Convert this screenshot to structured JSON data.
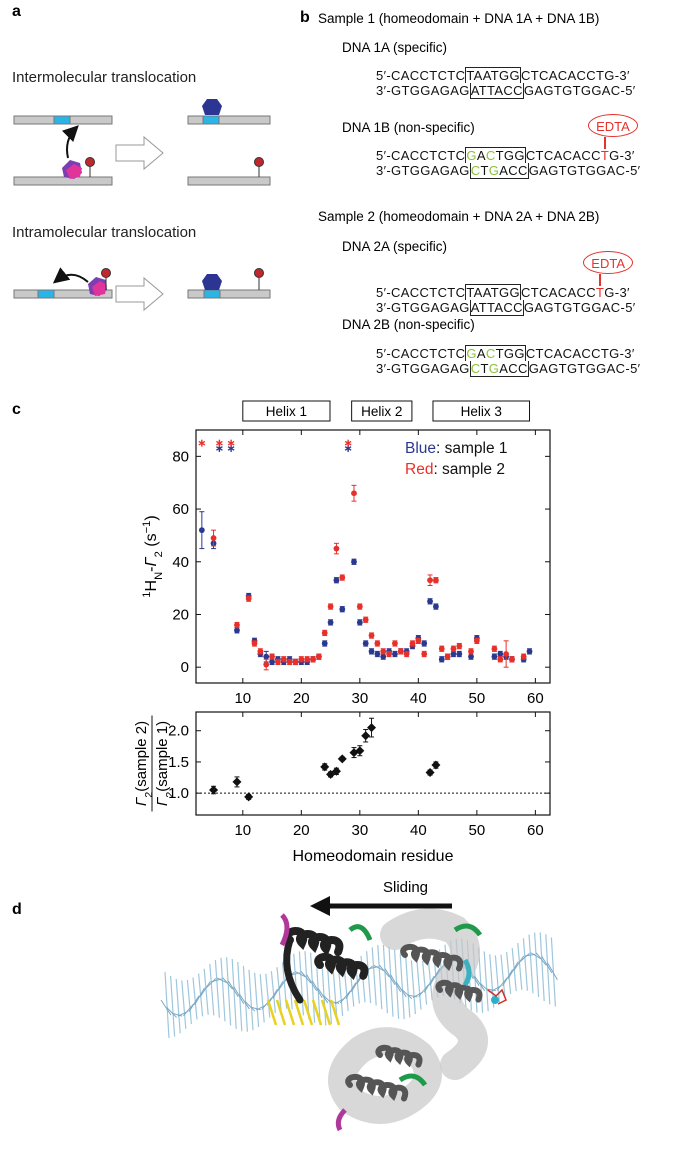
{
  "panel_labels": [
    "a",
    "b",
    "c",
    "d"
  ],
  "panel_a": {
    "titles": [
      "Intermolecular translocation",
      "Intramolecular translocation"
    ]
  },
  "panel_b": {
    "samples": [
      {
        "title": "Sample 1 (homeodomain + DNA 1A + DNA 1B)",
        "dnas": [
          {
            "label": "DNA 1A (specific)",
            "strands": [
              [
                {
                  "text": "5′-CACCTCTC",
                  "style": "plain"
                },
                {
                  "text": "TAATGG",
                  "style": "box"
                },
                {
                  "text": "CTCACACCTG-3′",
                  "style": "plain"
                }
              ],
              [
                {
                  "text": "3′-GTGGAGAG",
                  "style": "plain"
                },
                {
                  "text": "ATTACC",
                  "style": "box"
                },
                {
                  "text": "GAGTGTGGAC-5′",
                  "style": "plain"
                }
              ]
            ]
          },
          {
            "label": "DNA 1B (non-specific)",
            "tag": "EDTA",
            "strands": [
              [
                {
                  "text": "5′-CACCTCTC",
                  "style": "plain"
                },
                {
                  "text": "G",
                  "style": "box-green"
                },
                {
                  "text": "A",
                  "style": "box"
                },
                {
                  "text": "C",
                  "style": "box-green"
                },
                {
                  "text": "TGG",
                  "style": "box"
                },
                {
                  "text": "CTCACACC",
                  "style": "plain"
                },
                {
                  "text": "T",
                  "style": "red"
                },
                {
                  "text": "G-3′",
                  "style": "plain"
                }
              ],
              [
                {
                  "text": "3′-GTGGAGAG",
                  "style": "plain"
                },
                {
                  "text": "C",
                  "style": "box-green"
                },
                {
                  "text": "T",
                  "style": "box"
                },
                {
                  "text": "G",
                  "style": "box-green"
                },
                {
                  "text": "ACC",
                  "style": "box"
                },
                {
                  "text": "GAGTGTGGAC-5′",
                  "style": "plain"
                }
              ]
            ]
          }
        ]
      },
      {
        "title": "Sample 2 (homeodomain + DNA 2A + DNA 2B)",
        "dnas": [
          {
            "label": "DNA 2A (specific)",
            "tag": "EDTA",
            "strands": [
              [
                {
                  "text": "5′-CACCTCTC",
                  "style": "plain"
                },
                {
                  "text": "TAATGG",
                  "style": "box"
                },
                {
                  "text": "CTCACACC",
                  "style": "plain"
                },
                {
                  "text": "T",
                  "style": "red"
                },
                {
                  "text": "G-3′",
                  "style": "plain"
                }
              ],
              [
                {
                  "text": "3′-GTGGAGAG",
                  "style": "plain"
                },
                {
                  "text": "ATTACC",
                  "style": "box"
                },
                {
                  "text": "GAGTGTGGAC-5′",
                  "style": "plain"
                }
              ]
            ]
          },
          {
            "label": "DNA 2B (non-specific)",
            "strands": [
              [
                {
                  "text": "5′-CACCTCTC",
                  "style": "plain"
                },
                {
                  "text": "G",
                  "style": "box-green"
                },
                {
                  "text": "A",
                  "style": "box"
                },
                {
                  "text": "C",
                  "style": "box-green"
                },
                {
                  "text": "TGG",
                  "style": "box"
                },
                {
                  "text": "CTCACACCTG-3′",
                  "style": "plain"
                }
              ],
              [
                {
                  "text": "3′-GTGGAGAG",
                  "style": "plain"
                },
                {
                  "text": "C",
                  "style": "box-green"
                },
                {
                  "text": "T",
                  "style": "box"
                },
                {
                  "text": "G",
                  "style": "box-green"
                },
                {
                  "text": "ACC",
                  "style": "box"
                },
                {
                  "text": "GAGTGTGGAC-5′",
                  "style": "plain"
                }
              ]
            ]
          }
        ]
      }
    ]
  },
  "panel_d": {
    "arrow_label": "Sliding"
  },
  "chart_data": [
    {
      "type": "scatter",
      "ylabel": [
        {
          "text": "1",
          "style": "sup"
        },
        {
          "text": "H",
          "style": "normal"
        },
        {
          "text": "N",
          "style": "sub"
        },
        {
          "text": "-",
          "style": "normal"
        },
        {
          "text": "Γ",
          "style": "italic"
        },
        {
          "text": "2",
          "style": "sub"
        },
        {
          "text": " (s",
          "style": "normal"
        },
        {
          "text": "−1",
          "style": "sup"
        },
        {
          "text": ")",
          "style": "normal"
        }
      ],
      "xlim": [
        2,
        62.5
      ],
      "ylim": [
        -6,
        90
      ],
      "xticks": [
        10,
        20,
        30,
        40,
        50,
        60
      ],
      "yticks": [
        0,
        20,
        40,
        60,
        80
      ],
      "helices": [
        {
          "label": "Helix 1",
          "start": 10,
          "end": 24.9
        },
        {
          "label": "Helix 2",
          "start": 28.6,
          "end": 38.9
        },
        {
          "label": "Helix 3",
          "start": 42.5,
          "end": 59
        }
      ],
      "series": [
        {
          "name": "Blue: sample 1",
          "color": "#2a3990",
          "x": [
            3,
            5,
            9,
            11,
            12,
            13,
            14,
            15,
            16,
            17,
            18,
            19,
            20,
            21,
            22,
            23,
            24,
            25,
            26,
            27,
            29,
            30,
            31,
            32,
            33,
            34,
            35,
            36,
            37,
            38,
            39,
            40,
            41,
            42,
            43,
            44,
            45,
            46,
            47,
            49,
            50,
            53,
            54,
            55,
            56,
            58,
            59
          ],
          "values": [
            52,
            47,
            14,
            27,
            10,
            5,
            4,
            2,
            3,
            2,
            3,
            2,
            2,
            2,
            3,
            4,
            9,
            17,
            33,
            22,
            40,
            17,
            9,
            6,
            5,
            4,
            6,
            5,
            6,
            6,
            8,
            11,
            9,
            25,
            23,
            3,
            4,
            5,
            5,
            4,
            11,
            4,
            5,
            4,
            3,
            3,
            6
          ],
          "errors": [
            7,
            2,
            1,
            1,
            1,
            1,
            2,
            1,
            1,
            1,
            1,
            1,
            1,
            1,
            1,
            1,
            1,
            1,
            1,
            1,
            1,
            1,
            1,
            1,
            1,
            1,
            1,
            1,
            1,
            1,
            1,
            1,
            1,
            1,
            1,
            1,
            1,
            1,
            1,
            1,
            1,
            1,
            1,
            1,
            1,
            1,
            1
          ],
          "offscale": {
            "x": [
              6,
              8,
              28
            ],
            "values": [
              83,
              83,
              83
            ]
          }
        },
        {
          "name": "Red: sample 2",
          "color": "#e8302a",
          "x": [
            5,
            9,
            11,
            12,
            13,
            14,
            15,
            16,
            17,
            18,
            19,
            20,
            21,
            22,
            23,
            24,
            25,
            26,
            27,
            29,
            30,
            31,
            32,
            33,
            34,
            35,
            36,
            37,
            38,
            39,
            40,
            41,
            42,
            43,
            44,
            45,
            46,
            47,
            49,
            50,
            53,
            54,
            55,
            56,
            58
          ],
          "values": [
            49,
            16,
            26,
            9,
            6,
            1,
            4,
            2,
            3,
            2,
            2,
            3,
            3,
            3,
            4,
            13,
            23,
            45,
            34,
            66,
            23,
            18,
            12,
            9,
            6,
            5,
            9,
            6,
            5,
            9,
            10,
            5,
            33,
            33,
            7,
            4,
            7,
            8,
            6,
            10,
            7,
            3,
            5,
            3,
            4
          ],
          "errors": [
            3,
            1,
            1,
            1,
            1,
            2,
            1,
            1,
            1,
            1,
            1,
            1,
            1,
            1,
            1,
            1,
            1,
            2,
            1,
            3,
            1,
            1,
            1,
            1,
            1,
            1,
            1,
            1,
            1,
            1,
            1,
            1,
            2,
            1,
            1,
            1,
            1,
            1,
            1,
            1,
            1,
            1,
            5,
            1,
            1
          ],
          "offscale": {
            "x": [
              3,
              6,
              8,
              28
            ],
            "values": [
              85,
              85,
              85,
              85
            ]
          }
        }
      ]
    },
    {
      "type": "scatter",
      "ylabel": {
        "numerator": [
          {
            "text": "Γ",
            "style": "italic"
          },
          {
            "text": "2",
            "style": "sub"
          },
          {
            "text": "(sample 2)",
            "style": "normal"
          }
        ],
        "denominator": [
          {
            "text": "Γ",
            "style": "italic"
          },
          {
            "text": "2",
            "style": "sub"
          },
          {
            "text": "(sample 1)",
            "style": "normal"
          }
        ]
      },
      "xlabel": "Homeodomain residue",
      "xlim": [
        2,
        62.5
      ],
      "ylim": [
        0.65,
        2.3
      ],
      "xticks": [
        10,
        20,
        30,
        40,
        50,
        60
      ],
      "yticks": [
        {
          "value": 1,
          "label": "1.0"
        },
        1.5,
        {
          "value": 2,
          "label": "2.0"
        }
      ],
      "reference_line": 1,
      "series": [
        {
          "color": "#111111",
          "marker": "diamond",
          "x": [
            5,
            9,
            11,
            24,
            25,
            26,
            27,
            29,
            30,
            31,
            32,
            42,
            43
          ],
          "values": [
            1.05,
            1.18,
            0.94,
            1.42,
            1.3,
            1.35,
            1.55,
            1.65,
            1.68,
            1.92,
            2.05,
            1.33,
            1.45
          ],
          "errors": [
            0.06,
            0.08,
            0.04,
            0.05,
            0.04,
            0.05,
            0.03,
            0.08,
            0.08,
            0.1,
            0.15,
            0.04,
            0.05
          ]
        }
      ]
    }
  ]
}
